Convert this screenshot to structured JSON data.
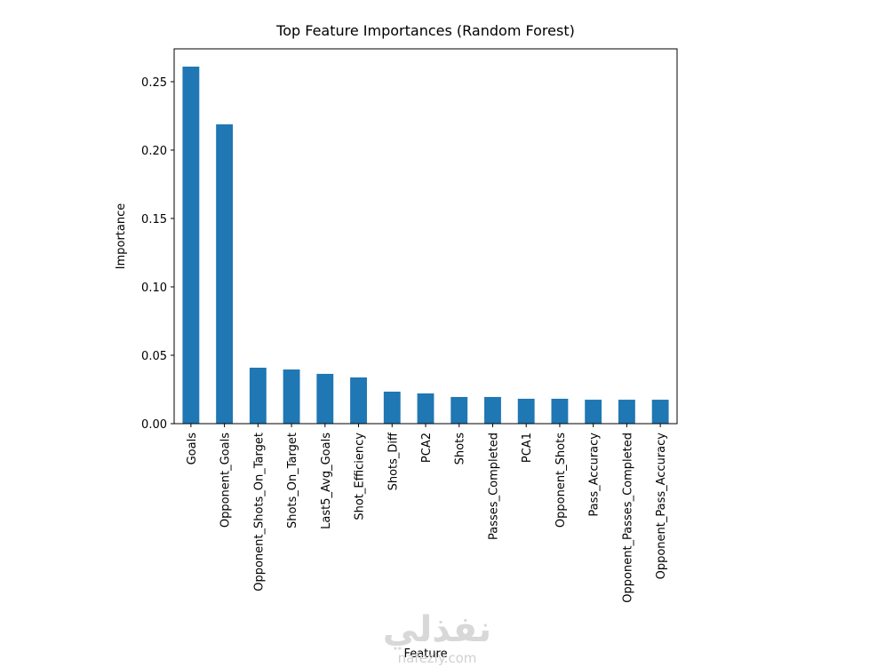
{
  "chart_data": {
    "type": "bar",
    "title": "Top Feature Importances (Random Forest)",
    "xlabel": "Feature",
    "ylabel": "Importance",
    "categories": [
      "Goals",
      "Opponent_Goals",
      "Opponent_Shots_On_Target",
      "Shots_On_Target",
      "Last5_Avg_Goals",
      "Shot_Efficiency",
      "Shots_Diff",
      "PCA2",
      "Shots",
      "Passes_Completed",
      "PCA1",
      "Opponent_Shots",
      "Pass_Accuracy",
      "Opponent_Passes_Completed",
      "Opponent_Pass_Accuracy"
    ],
    "values": [
      0.261,
      0.2188,
      0.0409,
      0.0396,
      0.0364,
      0.0338,
      0.0234,
      0.0221,
      0.0195,
      0.0195,
      0.0182,
      0.0182,
      0.0175,
      0.0175,
      0.0175
    ],
    "color": "#1f77b4",
    "ylim": [
      0,
      0.274
    ],
    "yticks": [
      {
        "value": 0,
        "label": "0.00"
      },
      {
        "value": 0.05,
        "label": "0.05"
      },
      {
        "value": 0.1,
        "label": "0.10"
      },
      {
        "value": 0.15,
        "label": "0.15"
      },
      {
        "value": 0.2,
        "label": "0.20"
      },
      {
        "value": 0.25,
        "label": "0.25"
      }
    ],
    "grid": false
  },
  "watermark": [
    "نفذلي",
    "nafezly.com"
  ]
}
